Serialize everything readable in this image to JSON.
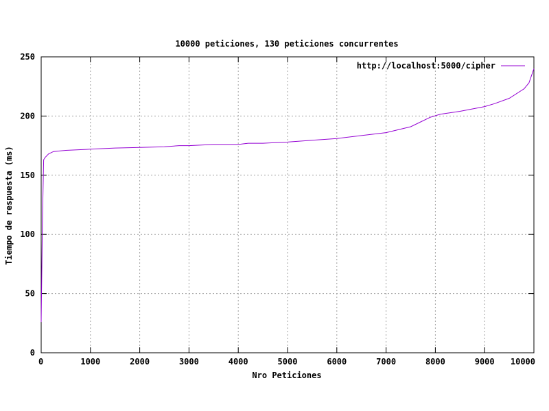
{
  "chart_data": {
    "type": "line",
    "title": "10000 peticiones, 130 peticiones concurrentes",
    "xlabel": "Nro Peticiones",
    "ylabel": "Tiempo de respuesta (ms)",
    "xlim": [
      0,
      10000
    ],
    "ylim": [
      0,
      250
    ],
    "xticks": [
      0,
      1000,
      2000,
      3000,
      4000,
      5000,
      6000,
      7000,
      8000,
      9000,
      10000
    ],
    "yticks": [
      0,
      50,
      100,
      150,
      200,
      250
    ],
    "grid": true,
    "legend_position": "top-right",
    "series": [
      {
        "name": "http://localhost:5000/cipher",
        "color": "#9400d3",
        "x": [
          0,
          25,
          50,
          80,
          150,
          250,
          500,
          1000,
          1500,
          2000,
          2500,
          2800,
          3000,
          3500,
          4000,
          4200,
          4500,
          5000,
          5500,
          6000,
          6500,
          7000,
          7500,
          7700,
          7900,
          8100,
          8500,
          9000,
          9200,
          9500,
          9800,
          9900,
          10000
        ],
        "y": [
          26,
          110,
          163,
          165,
          168,
          170,
          171,
          172,
          173,
          173.5,
          174,
          175,
          175,
          176,
          176,
          177,
          177,
          178,
          179.5,
          181,
          183.5,
          186,
          191,
          195,
          199,
          201.5,
          204,
          208,
          210.5,
          215,
          223,
          228,
          240
        ]
      }
    ]
  }
}
